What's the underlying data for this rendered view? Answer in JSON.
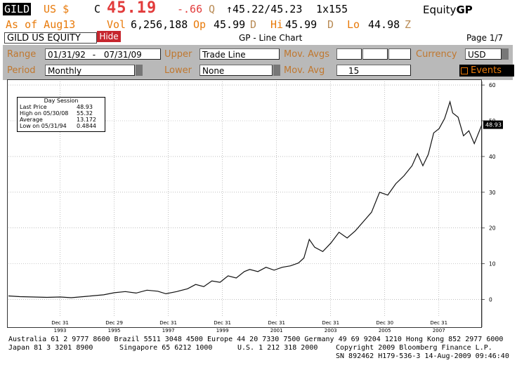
{
  "quote": {
    "ticker": "GILD",
    "market": "US $",
    "c_label": "C",
    "last": "45.19",
    "change": "-.66",
    "q": "Q",
    "bidask": "↑45.22/45.23",
    "size": "1x155",
    "equity": "Equity",
    "fn": "GP",
    "asof": "As of Aug13",
    "vol_label": "Vol",
    "vol": "6,256,188",
    "op_label": "Op",
    "op": "45.99",
    "d1": "D",
    "hi_label": "Hi",
    "hi": "45.99",
    "d2": "D",
    "lo_label": "Lo",
    "lo": "44.98",
    "z": "Z"
  },
  "header": {
    "security": "GILD US EQUITY",
    "hide": "Hide",
    "chart_title": "GP - Line Chart",
    "page": "Page 1/7"
  },
  "params": {
    "range_label": "Range",
    "range_start": "01/31/92",
    "range_dash": "-",
    "range_end": "07/31/09",
    "upper_label": "Upper",
    "upper_value": "Trade Line",
    "movavgs_label": "Mov. Avgs",
    "currency_label": "Currency",
    "currency_value": "USD",
    "period_label": "Period",
    "period_value": "Monthly",
    "lower_label": "Lower",
    "lower_value": "None",
    "movavg_label": "Mov. Avg",
    "movavg_value": "15",
    "events_label": "Events"
  },
  "legend": {
    "title": "Day Session",
    "rows": [
      {
        "label": "Last Price",
        "value": "48.93"
      },
      {
        "label": "High on 05/30/08",
        "value": "55.32"
      },
      {
        "label": "Average",
        "value": "13.172"
      },
      {
        "label": "Low on 05/31/94",
        "value": "0.4844"
      }
    ]
  },
  "price_tag": "48.93",
  "chart_data": {
    "type": "line",
    "x_ticks_top": [
      "Dec 31",
      "Dec 29",
      "Dec 31",
      "Dec 31",
      "Dec 31",
      "Dec 31",
      "Dec 30",
      "Dec 31"
    ],
    "x_ticks_bottom": [
      "1993",
      "1995",
      "1997",
      "1999",
      "2001",
      "2003",
      "2005",
      "2007"
    ],
    "y_ticks": [
      0,
      10,
      20,
      30,
      40,
      50,
      60
    ],
    "ylim": [
      -5,
      61
    ],
    "xlim": [
      1992.08,
      2009.58
    ],
    "grid": true,
    "series": [
      {
        "x": [
          1992.08,
          1992.5,
          1993.0,
          1993.5,
          1994.0,
          1994.4,
          1995.0,
          1995.6,
          1996.0,
          1996.4,
          1996.8,
          1997.2,
          1997.6,
          1997.9,
          1998.3,
          1998.7,
          1999.0,
          1999.3,
          1999.6,
          1999.9,
          2000.2,
          2000.5,
          2000.8,
          2001.0,
          2001.3,
          2001.6,
          2001.9,
          2002.2,
          2002.5,
          2002.8,
          2003.0,
          2003.2,
          2003.4,
          2003.7,
          2004.0,
          2004.3,
          2004.6,
          2004.9,
          2005.2,
          2005.5,
          2005.8,
          2006.1,
          2006.4,
          2006.7,
          2007.0,
          2007.2,
          2007.4,
          2007.6,
          2007.8,
          2008.0,
          2008.2,
          2008.4,
          2008.5,
          2008.7,
          2008.9,
          2009.1,
          2009.3,
          2009.58
        ],
        "y": [
          1.0,
          0.8,
          0.7,
          0.6,
          0.7,
          0.5,
          0.9,
          1.3,
          1.9,
          2.2,
          1.8,
          2.6,
          2.3,
          1.6,
          2.2,
          3.0,
          4.2,
          3.6,
          5.2,
          4.8,
          6.6,
          6.0,
          7.8,
          8.4,
          7.8,
          9.0,
          8.2,
          9.0,
          9.4,
          10.2,
          11.6,
          16.8,
          14.6,
          13.4,
          15.8,
          18.8,
          17.2,
          19.2,
          21.8,
          24.4,
          30.0,
          29.2,
          32.4,
          34.6,
          37.4,
          40.8,
          37.4,
          40.6,
          46.6,
          47.8,
          50.6,
          55.3,
          52.2,
          51.0,
          45.8,
          47.2,
          43.6,
          48.9
        ]
      }
    ]
  },
  "footer": {
    "line1": "Australia 61 2 9777 8600 Brazil 5511 3048 4500 Europe 44 20 7330 7500 Germany 49 69 9204 1210 Hong Kong 852 2977 6000",
    "line2a": "Japan 81 3 3201 8900",
    "line2b": "Singapore 65 6212 1000",
    "line2c": "U.S. 1 212 318 2000",
    "line2d": "Copyright 2009 Bloomberg Finance L.P.",
    "line3": "SN 892462 H179-536-3 14-Aug-2009 09:46:40"
  }
}
